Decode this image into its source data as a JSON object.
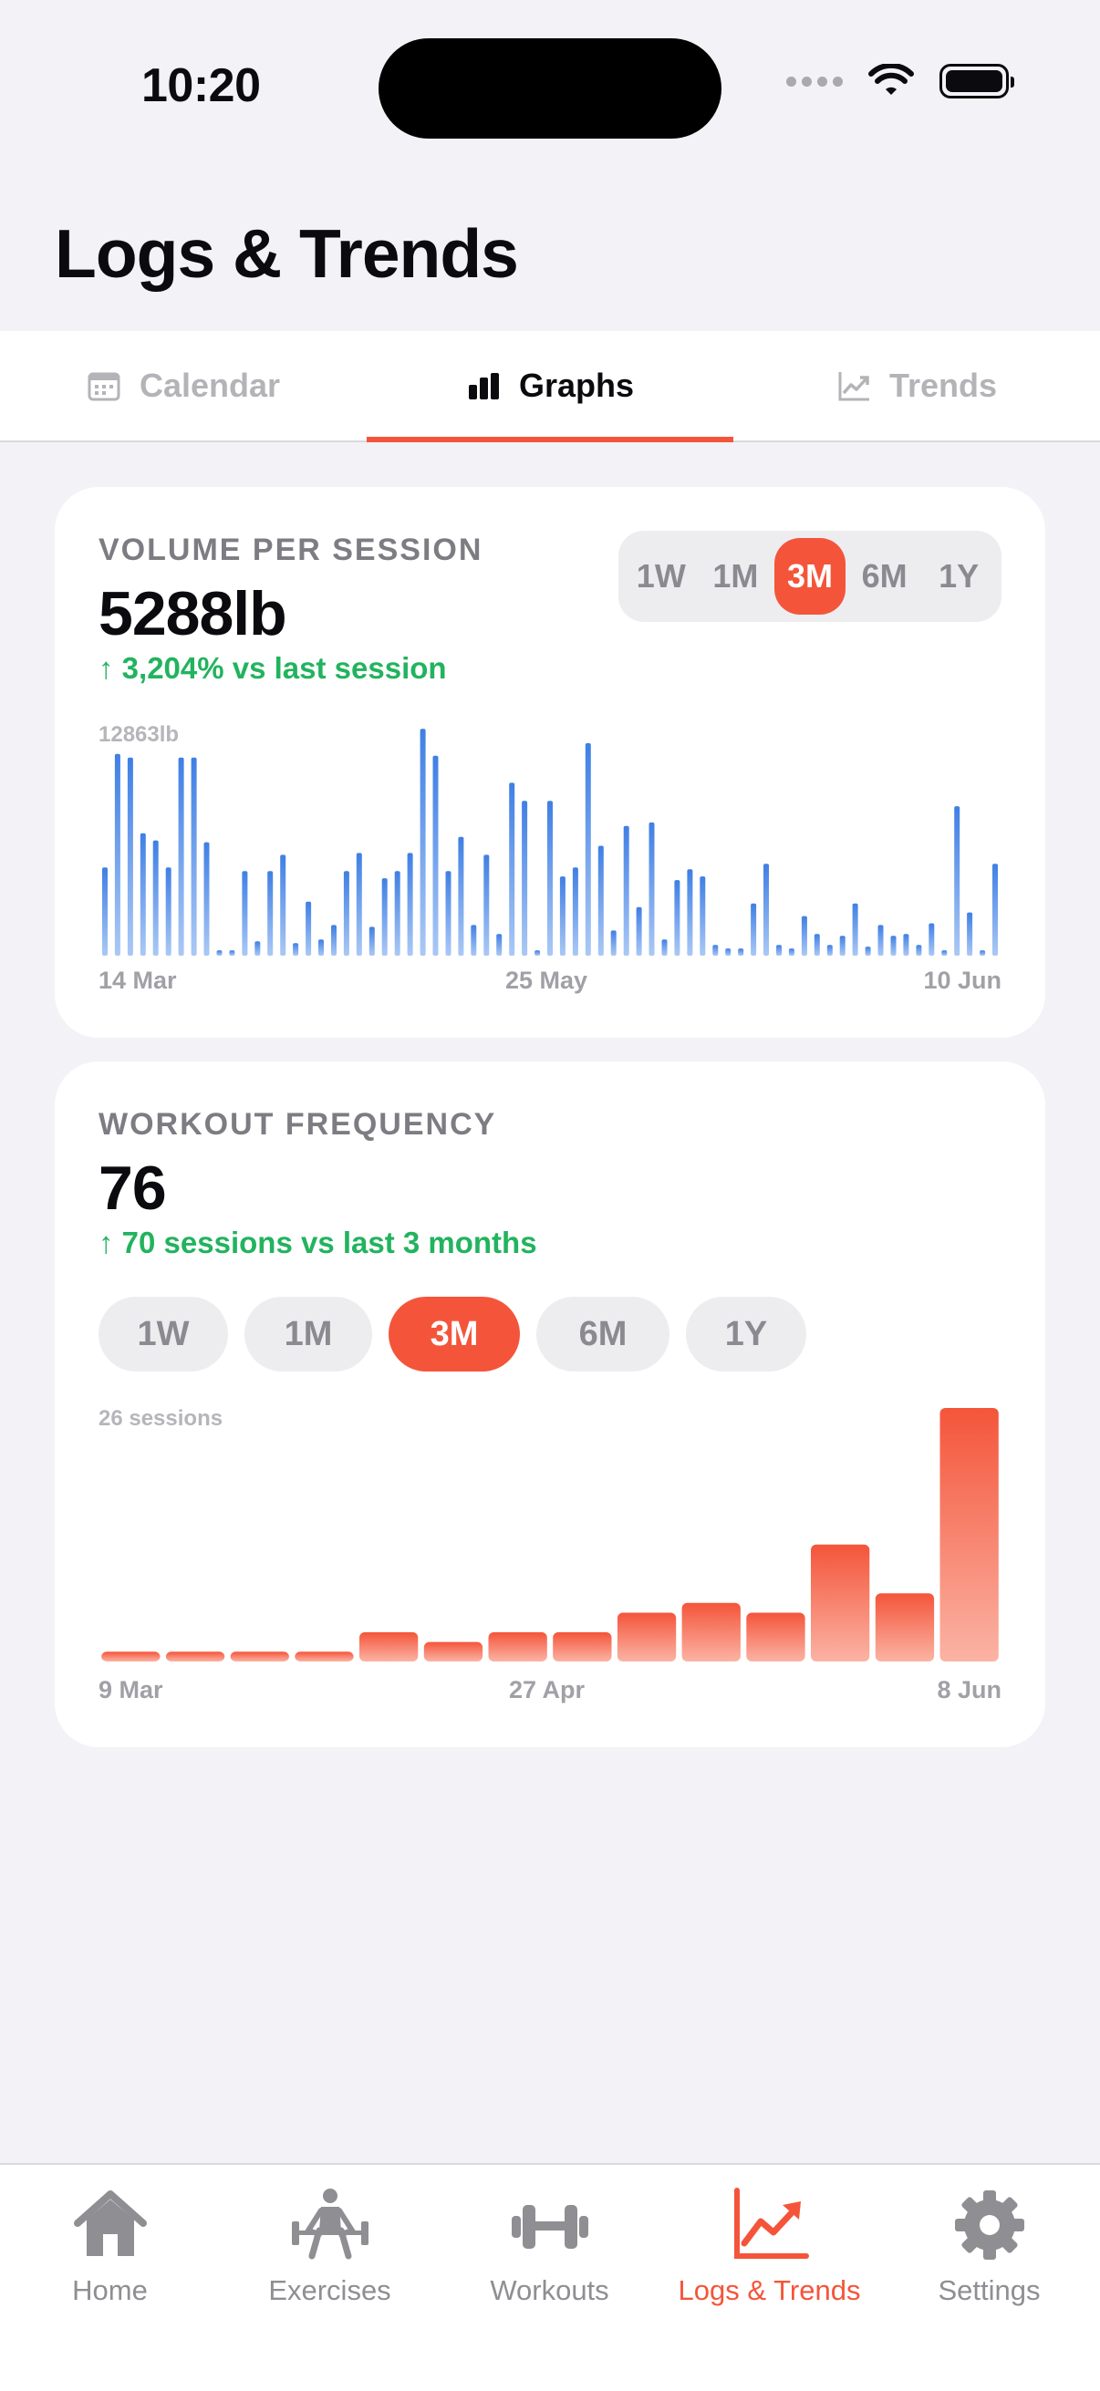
{
  "status_bar": {
    "time": "10:20"
  },
  "page": {
    "title": "Logs & Trends"
  },
  "top_tabs": [
    {
      "label": "Calendar",
      "icon": "calendar-icon",
      "active": false
    },
    {
      "label": "Graphs",
      "icon": "bar-chart-icon",
      "active": true
    },
    {
      "label": "Trends",
      "icon": "trend-line-icon",
      "active": false
    }
  ],
  "volume_card": {
    "label": "VOLUME PER SESSION",
    "value": "5288lb",
    "delta": "↑ 3,204% vs last session",
    "ranges": [
      "1W",
      "1M",
      "3M",
      "6M",
      "1Y"
    ],
    "selected_range": "3M",
    "chart_max_label": "12863lb",
    "x_labels": [
      "14 Mar",
      "25 May",
      "10 Jun"
    ]
  },
  "frequency_card": {
    "label": "WORKOUT FREQUENCY",
    "value": "76",
    "delta": "↑ 70 sessions vs last 3 months",
    "ranges": [
      "1W",
      "1M",
      "3M",
      "6M",
      "1Y"
    ],
    "selected_range": "3M",
    "chart_max_label": "26 sessions",
    "x_labels": [
      "9 Mar",
      "27 Apr",
      "8 Jun"
    ]
  },
  "chart_data": [
    {
      "type": "bar",
      "title": "VOLUME PER SESSION",
      "ylabel": "lb",
      "ylim": [
        0,
        12863
      ],
      "x_tick_labels": [
        "14 Mar",
        "25 May",
        "10 Jun"
      ],
      "values": [
        4900,
        11200,
        11000,
        6800,
        6400,
        4900,
        11000,
        11000,
        6300,
        300,
        300,
        4700,
        800,
        4700,
        5600,
        700,
        3000,
        900,
        1700,
        4700,
        5700,
        1600,
        4300,
        4700,
        5700,
        12600,
        11100,
        4700,
        6600,
        1700,
        5600,
        1200,
        9600,
        8600,
        300,
        8600,
        4400,
        4900,
        11800,
        6100,
        1400,
        7200,
        2700,
        7400,
        900,
        4200,
        4800,
        4400,
        600,
        400,
        400,
        2900,
        5100,
        600,
        400,
        2200,
        1200,
        600,
        1100,
        2900,
        500,
        1700,
        1100,
        1200,
        600,
        1800,
        300,
        8300,
        2400,
        300,
        5100
      ],
      "color": "#3f7fe4"
    },
    {
      "type": "bar",
      "title": "WORKOUT FREQUENCY",
      "ylabel": "sessions",
      "ylim": [
        0,
        26
      ],
      "x_tick_labels": [
        "9 Mar",
        "27 Apr",
        "8 Jun"
      ],
      "values": [
        1,
        1,
        1,
        1,
        3,
        2,
        3,
        3,
        5,
        6,
        5,
        12,
        7,
        26
      ],
      "color": "#f4553a"
    }
  ],
  "tab_bar": [
    {
      "label": "Home",
      "icon": "house-icon",
      "active": false
    },
    {
      "label": "Exercises",
      "icon": "weightlifter-icon",
      "active": false
    },
    {
      "label": "Workouts",
      "icon": "dumbbell-icon",
      "active": false
    },
    {
      "label": "Logs & Trends",
      "icon": "trend-chart-icon",
      "active": true
    },
    {
      "label": "Settings",
      "icon": "gear-icon",
      "active": false
    }
  ],
  "colors": {
    "accent": "#f4553a",
    "positive": "#22b35e",
    "volume_bar": "#3f7fe4",
    "background": "#f2f2f7"
  }
}
